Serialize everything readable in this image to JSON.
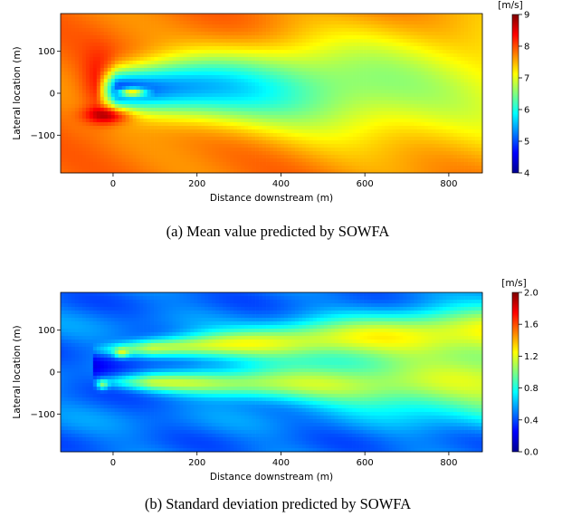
{
  "panels": [
    {
      "caption": "(a) Mean value predicted by SOWFA",
      "unit": "[m/s]",
      "xlabel": "Distance downstream (m)",
      "ylabel": "Lateral location (m)",
      "colorbar_ticks": [
        "4",
        "5",
        "6",
        "7",
        "8",
        "9"
      ]
    },
    {
      "caption": "(b) Standard deviation predicted by SOWFA",
      "unit": "[m/s]",
      "xlabel": "Distance downstream (m)",
      "ylabel": "Lateral location (m)",
      "colorbar_ticks": [
        "0.0",
        "0.4",
        "0.8",
        "1.2",
        "1.6",
        "2.0"
      ]
    }
  ],
  "chart_data": [
    {
      "type": "heatmap",
      "title": "(a) Mean value predicted by SOWFA",
      "xlabel": "Distance downstream (m)",
      "ylabel": "Lateral location (m)",
      "xlim": [
        -125,
        880
      ],
      "ylim": [
        -190,
        190
      ],
      "x_ticks": [
        0,
        200,
        400,
        600,
        800
      ],
      "y_ticks": [
        -100,
        0,
        100
      ],
      "x_tick_labels": [
        "0",
        "200",
        "400",
        "600",
        "800"
      ],
      "y_tick_labels": [
        "−100",
        "0",
        "100"
      ],
      "colorbar": {
        "label": "[m/s]",
        "range": [
          4,
          9
        ],
        "ticks": [
          4,
          5,
          6,
          7,
          8,
          9
        ],
        "colormap": "jet"
      },
      "field": {
        "ambient": 7.8,
        "wake_center_y": 10,
        "wake_start_x": -40,
        "notes": "Wake deficit from turbine near x≈0 down to ~4.5 m/s, recovering to ~6.5 m/s at x≈880; speed-up ~8.8 m/s at y≈-50 near x≈0 and a high-speed core near (40,0)"
      }
    },
    {
      "type": "heatmap",
      "title": "(b) Standard deviation predicted by SOWFA",
      "xlabel": "Distance downstream (m)",
      "ylabel": "Lateral location (m)",
      "xlim": [
        -125,
        880
      ],
      "ylim": [
        -190,
        190
      ],
      "x_ticks": [
        0,
        200,
        400,
        600,
        800
      ],
      "y_ticks": [
        -100,
        0,
        100
      ],
      "x_tick_labels": [
        "0",
        "200",
        "400",
        "600",
        "800"
      ],
      "y_tick_labels": [
        "−100",
        "0",
        "100"
      ],
      "colorbar": {
        "label": "[m/s]",
        "range": [
          0.0,
          2.0
        ],
        "ticks": [
          0.0,
          0.4,
          0.8,
          1.2,
          1.6,
          2.0
        ],
        "colormap": "jet"
      },
      "field": {
        "ambient": 0.5,
        "notes": "Elevated turbulence (~1.0–1.1 m/s) in two shear layers at y≈+50 and y≈-25 growing downstream; low (~0.3 m/s) just behind rotor"
      }
    }
  ]
}
